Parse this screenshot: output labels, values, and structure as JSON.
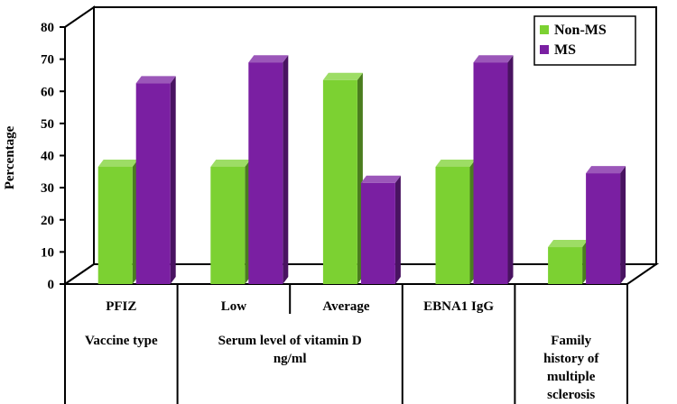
{
  "chart_data": {
    "type": "bar",
    "style": "3d-clustered-column",
    "ylabel": "Percentage",
    "ylim": [
      0,
      80
    ],
    "yticks": [
      0,
      10,
      20,
      30,
      40,
      50,
      60,
      70,
      80
    ],
    "groups": [
      {
        "label": "PFIZ",
        "group_label": [
          "Vaccine type"
        ]
      },
      {
        "label": "Low",
        "group_label": [
          "Serum level of vitamin D",
          "ng/ml"
        ]
      },
      {
        "label": "Average"
      },
      {
        "label": "EBNA1 IgG",
        "group_label": []
      },
      {
        "label": "",
        "group_label": [
          "Family",
          "history of",
          "multiple",
          "sclerosis"
        ]
      }
    ],
    "categories": [
      "PFIZ",
      "Low",
      "Average",
      "EBNA1 IgG",
      "Family history of multiple sclerosis"
    ],
    "series": [
      {
        "name": "Non-MS",
        "color": "#7CD132",
        "values": [
          36.5,
          36.5,
          63.5,
          36.5,
          11.5
        ]
      },
      {
        "name": "MS",
        "color": "#7A1FA2",
        "values": [
          62.5,
          69,
          31.5,
          69,
          34.5
        ]
      }
    ],
    "legend": {
      "position": "top-right",
      "entries": [
        "Non-MS",
        "MS"
      ]
    }
  }
}
